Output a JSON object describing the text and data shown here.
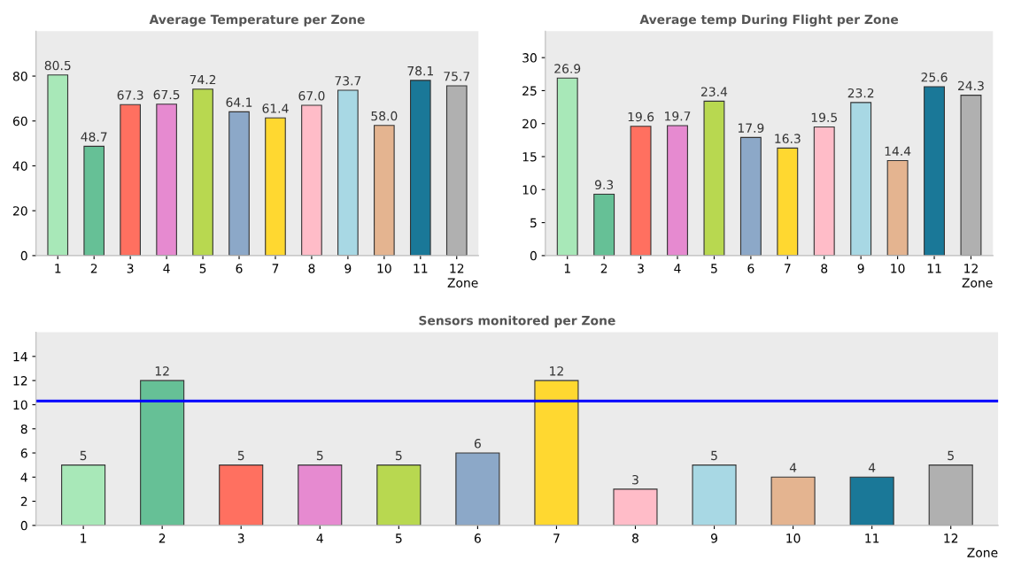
{
  "chart_data": [
    {
      "type": "bar",
      "title": "Average Temperature per Zone",
      "xlabel": "Zone",
      "categories": [
        "1",
        "2",
        "3",
        "4",
        "5",
        "6",
        "7",
        "8",
        "9",
        "10",
        "11",
        "12"
      ],
      "values": [
        80.5,
        48.7,
        67.3,
        67.5,
        74.2,
        64.1,
        61.4,
        67.0,
        73.7,
        58.0,
        78.1,
        75.7
      ],
      "value_labels": [
        "80.5",
        "48.7",
        "67.3",
        "67.5",
        "74.2",
        "64.1",
        "61.4",
        "67.0",
        "73.7",
        "58.0",
        "78.1",
        "75.7"
      ],
      "colors": [
        "#a8e8b8",
        "#66c096",
        "#ff7060",
        "#e68ad0",
        "#b8d850",
        "#8ca8c8",
        "#ffd830",
        "#ffbcc8",
        "#a8d8e4",
        "#e4b490",
        "#1a7898",
        "#b0b0b0"
      ],
      "ylim": [
        0,
        100
      ],
      "yticks": [
        0,
        20,
        40,
        60,
        80
      ],
      "grid": false
    },
    {
      "type": "bar",
      "title": "Average temp During Flight per Zone",
      "xlabel": "Zone",
      "categories": [
        "1",
        "2",
        "3",
        "4",
        "5",
        "6",
        "7",
        "8",
        "9",
        "10",
        "11",
        "12"
      ],
      "values": [
        26.9,
        9.3,
        19.6,
        19.7,
        23.4,
        17.9,
        16.3,
        19.5,
        23.2,
        14.4,
        25.6,
        24.3
      ],
      "data_labels": true,
      "colors": [
        "#a8e8b8",
        "#66c096",
        "#ff7060",
        "#e68ad0",
        "#b8d850",
        "#8ca8c8",
        "#ffd830",
        "#ffbcc8",
        "#a8d8e4",
        "#e4b490",
        "#1a7898",
        "#b0b0b0"
      ],
      "ylim": [
        0,
        34
      ],
      "yticks": [
        0,
        5,
        10,
        15,
        20,
        25,
        30
      ],
      "grid": false
    },
    {
      "type": "bar",
      "title": "Sensors monitored per Zone",
      "xlabel": "Zone",
      "categories": [
        "1",
        "2",
        "3",
        "4",
        "5",
        "6",
        "7",
        "8",
        "9",
        "10",
        "11",
        "12"
      ],
      "values": [
        5,
        12,
        5,
        5,
        5,
        6,
        12,
        3,
        5,
        4,
        4,
        5
      ],
      "data_labels": true,
      "colors": [
        "#a8e8b8",
        "#66c096",
        "#ff7060",
        "#e68ad0",
        "#b8d850",
        "#8ca8c8",
        "#ffd830",
        "#ffbcc8",
        "#a8d8e4",
        "#e4b490",
        "#1a7898",
        "#b0b0b0"
      ],
      "ylim": [
        0,
        16
      ],
      "yticks": [
        0,
        2,
        4,
        6,
        8,
        10,
        12,
        14
      ],
      "grid": false,
      "ref_lines": [
        {
          "axis": "y",
          "value": 10.3,
          "color": "#0000ff",
          "line_style": "solid"
        }
      ]
    }
  ]
}
